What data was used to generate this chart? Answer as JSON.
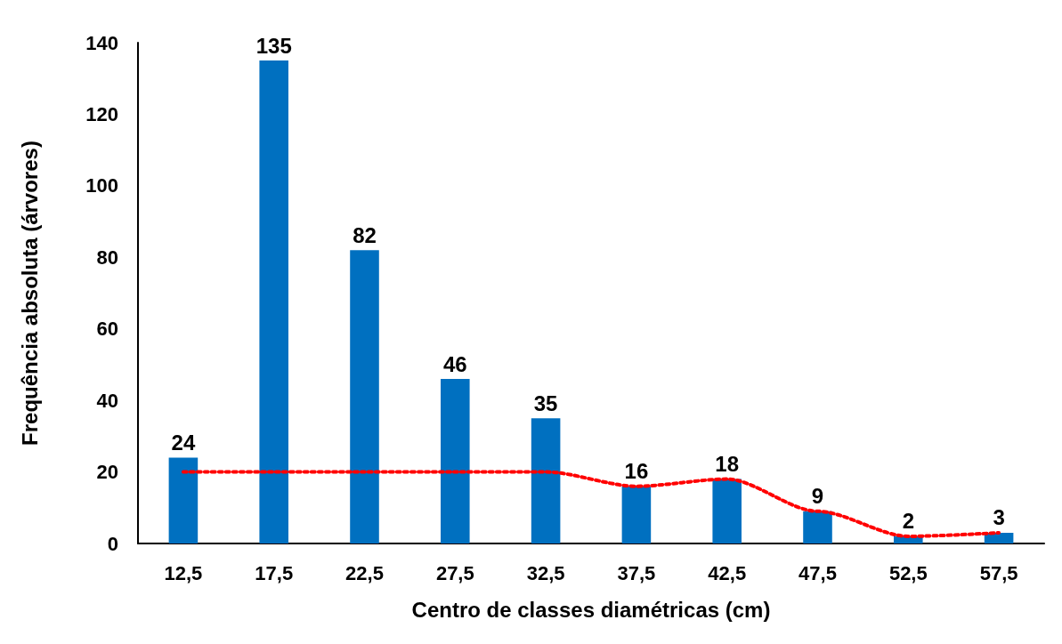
{
  "chart_data": {
    "type": "bar",
    "xlabel": "Centro de classes diamétricas (cm)",
    "ylabel": "Frequência absoluta (árvores)",
    "categories": [
      "12,5",
      "17,5",
      "22,5",
      "27,5",
      "32,5",
      "37,5",
      "42,5",
      "47,5",
      "52,5",
      "57,5"
    ],
    "series": [
      {
        "color": "#0070c0",
        "values": [
          24,
          135,
          82,
          46,
          35,
          16,
          18,
          9,
          2,
          3
        ],
        "value_labels": [
          "24",
          "135",
          "82",
          "46",
          "35",
          "16",
          "18",
          "9",
          "2",
          "3"
        ]
      },
      {
        "type": "line",
        "color": "#ff0000",
        "values": [
          20,
          20,
          20,
          20,
          20,
          16,
          18,
          9,
          2,
          3
        ],
        "line_style": "dotted",
        "marker": "none"
      }
    ],
    "ylim": [
      0,
      140
    ],
    "yticks": [
      0,
      20,
      40,
      60,
      80,
      100,
      120,
      140
    ],
    "grid": false
  }
}
